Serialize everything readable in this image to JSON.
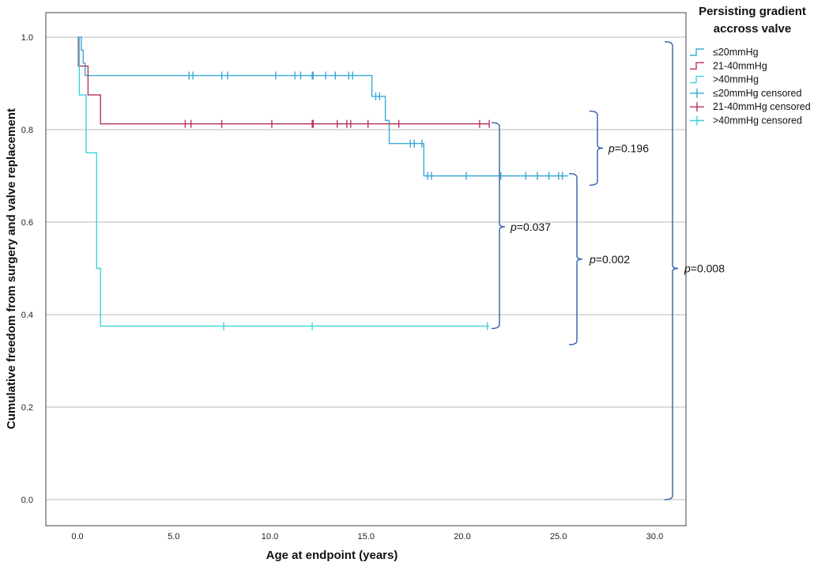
{
  "chart_data": {
    "type": "line",
    "subtype": "kaplan-meier",
    "xlabel": "Age at endpoint (years)",
    "ylabel": "Cumulative freedom from surgery and valve replacement",
    "xlim": [
      0,
      30
    ],
    "ylim": [
      0,
      1
    ],
    "x_ticks": [
      "0.0",
      "5.0",
      "10.0",
      "15.0",
      "20.0",
      "25.0",
      "30.0"
    ],
    "y_ticks": [
      "0.0",
      "0.2",
      "0.4",
      "0.6",
      "0.8",
      "1.0"
    ],
    "grid": "horizontal",
    "legend_title": [
      "Persisting gradient",
      "accross valve"
    ],
    "legend_position": "top-right",
    "series": [
      {
        "name": "≤20mmHg",
        "color": "#3aa8d8",
        "steps": [
          [
            0,
            1.0
          ],
          [
            0.2,
            1.0
          ],
          [
            0.2,
            0.972
          ],
          [
            0.3,
            0.972
          ],
          [
            0.3,
            0.944
          ],
          [
            0.4,
            0.944
          ],
          [
            0.4,
            0.917
          ],
          [
            15.3,
            0.917
          ],
          [
            15.3,
            0.872
          ],
          [
            16.0,
            0.872
          ],
          [
            16.0,
            0.82
          ],
          [
            16.2,
            0.82
          ],
          [
            16.2,
            0.77
          ],
          [
            18.0,
            0.77
          ],
          [
            18.0,
            0.7
          ],
          [
            21.5,
            0.7
          ],
          [
            21.5,
            0.7
          ],
          [
            25.5,
            0.7
          ]
        ],
        "censored_name": "≤20mmHg censored",
        "censored": [
          [
            5.8,
            0.917
          ],
          [
            6.0,
            0.917
          ],
          [
            7.5,
            0.917
          ],
          [
            7.8,
            0.917
          ],
          [
            10.3,
            0.917
          ],
          [
            11.3,
            0.917
          ],
          [
            11.6,
            0.917
          ],
          [
            12.2,
            0.917
          ],
          [
            12.25,
            0.917
          ],
          [
            12.9,
            0.917
          ],
          [
            13.4,
            0.917
          ],
          [
            14.1,
            0.917
          ],
          [
            14.3,
            0.917
          ],
          [
            15.5,
            0.872
          ],
          [
            15.7,
            0.872
          ],
          [
            17.3,
            0.77
          ],
          [
            17.5,
            0.77
          ],
          [
            17.9,
            0.77
          ],
          [
            18.2,
            0.7
          ],
          [
            18.4,
            0.7
          ],
          [
            20.2,
            0.7
          ],
          [
            22.0,
            0.7
          ],
          [
            23.3,
            0.7
          ],
          [
            23.9,
            0.7
          ],
          [
            24.5,
            0.7
          ],
          [
            25.0,
            0.7
          ],
          [
            25.2,
            0.7
          ]
        ]
      },
      {
        "name": "21-40mmHg",
        "color": "#b5345a",
        "steps": [
          [
            0,
            1.0
          ],
          [
            0.05,
            1.0
          ],
          [
            0.05,
            0.9375
          ],
          [
            0.55,
            0.9375
          ],
          [
            0.55,
            0.875
          ],
          [
            1.2,
            0.875
          ],
          [
            1.2,
            0.8125
          ],
          [
            21.4,
            0.8125
          ]
        ],
        "censored_name": "21-40mmHg censored",
        "censored": [
          [
            5.6,
            0.8125
          ],
          [
            5.9,
            0.8125
          ],
          [
            7.5,
            0.8125
          ],
          [
            10.1,
            0.8125
          ],
          [
            12.2,
            0.8125
          ],
          [
            12.25,
            0.8125
          ],
          [
            13.5,
            0.8125
          ],
          [
            14.0,
            0.8125
          ],
          [
            14.2,
            0.8125
          ],
          [
            15.1,
            0.8125
          ],
          [
            16.7,
            0.8125
          ],
          [
            20.9,
            0.8125
          ],
          [
            21.4,
            0.8125
          ]
        ]
      },
      {
        "name": ">40mmHg",
        "color": "#3fd0de",
        "steps": [
          [
            0,
            1.0
          ],
          [
            0.1,
            1.0
          ],
          [
            0.1,
            0.875
          ],
          [
            0.45,
            0.875
          ],
          [
            0.45,
            0.75
          ],
          [
            1.0,
            0.75
          ],
          [
            1.0,
            0.5
          ],
          [
            1.2,
            0.5
          ],
          [
            1.2,
            0.375
          ],
          [
            21.4,
            0.375
          ]
        ],
        "censored_name": ">40mmHg censored",
        "censored": [
          [
            7.6,
            0.375
          ],
          [
            12.2,
            0.375
          ],
          [
            21.3,
            0.375
          ]
        ]
      }
    ],
    "annotations": [
      {
        "label": "p",
        "value": "=0.196",
        "compares": "≤20mmHg vs 21-40mmHg",
        "y_range": [
          0.68,
          0.84
        ]
      },
      {
        "label": "p",
        "value": "=0.037",
        "compares": "21-40mmHg vs >40mmHg",
        "y_range": [
          0.37,
          0.815
        ]
      },
      {
        "label": "p",
        "value": "=0.002",
        "compares": "≤20mmHg vs >40mmHg",
        "y_range": [
          0.335,
          0.705
        ]
      },
      {
        "label": "p",
        "value": "=0.008",
        "compares": "overall",
        "y_range": [
          0.0,
          0.99
        ]
      }
    ]
  }
}
